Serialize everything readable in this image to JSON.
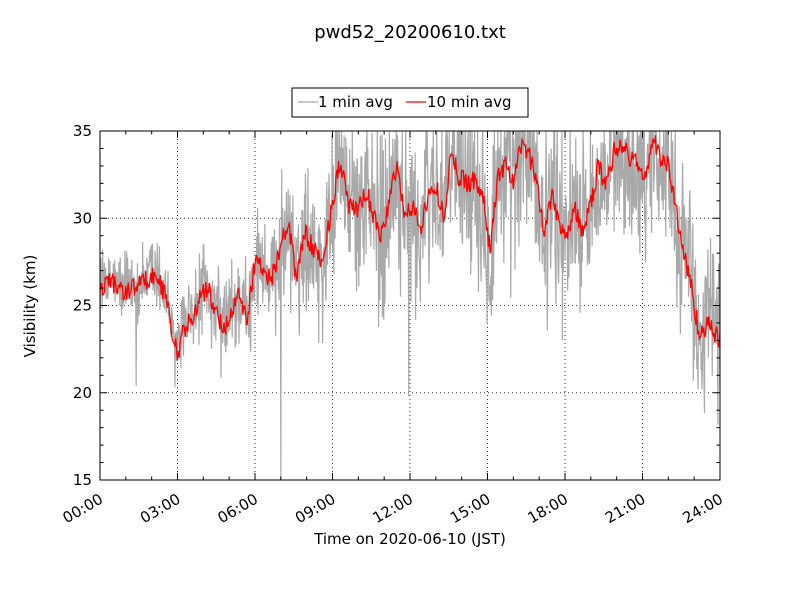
{
  "chart_data": {
    "type": "line",
    "title": "pwd52_20200610.txt",
    "xlabel": "Time on 2020-06-10 (JST)",
    "ylabel": "Visibility (km)",
    "x_ticks": [
      "00:00",
      "03:00",
      "06:00",
      "09:00",
      "12:00",
      "15:00",
      "18:00",
      "21:00",
      "24:00"
    ],
    "x_tick_hours": [
      0,
      3,
      6,
      9,
      12,
      15,
      18,
      21,
      24
    ],
    "y_ticks": [
      "15",
      "20",
      "25",
      "30",
      "35"
    ],
    "xlim_hours": [
      0,
      24
    ],
    "ylim": [
      15,
      35
    ],
    "grid": true,
    "legend_position": "top-center",
    "series": [
      {
        "name": "1 min avg",
        "color": "#a9a9a9",
        "noise_amplitude_km": [
          1.8,
          1.8,
          3.0,
          4.0,
          5.0,
          5.5,
          5.0,
          4.5,
          4.5
        ],
        "min_spikes": [
          {
            "hour": 7.0,
            "value": 15.0
          },
          {
            "hour": 11.95,
            "value": 19.8
          },
          {
            "hour": 1.4,
            "value": 20.4
          },
          {
            "hour": 2.9,
            "value": 20.3
          },
          {
            "hour": 23.3,
            "value": 20.2
          }
        ]
      },
      {
        "name": "10 min avg",
        "color": "#ff0000",
        "hours": [
          0,
          0.3,
          0.7,
          1.0,
          1.5,
          2.0,
          2.3,
          2.6,
          2.8,
          3.0,
          3.3,
          3.6,
          3.9,
          4.2,
          4.5,
          4.8,
          5.1,
          5.4,
          5.7,
          6.0,
          6.3,
          6.6,
          7.0,
          7.3,
          7.6,
          7.9,
          8.3,
          8.6,
          9.0,
          9.3,
          9.6,
          10.0,
          10.3,
          10.6,
          10.9,
          11.2,
          11.5,
          11.8,
          12.1,
          12.4,
          12.7,
          13.0,
          13.3,
          13.6,
          13.9,
          14.2,
          14.5,
          14.8,
          15.1,
          15.4,
          15.7,
          16.0,
          16.3,
          16.6,
          16.9,
          17.2,
          17.5,
          17.8,
          18.1,
          18.4,
          18.7,
          19.0,
          19.3,
          19.6,
          19.9,
          20.2,
          20.5,
          20.8,
          21.1,
          21.4,
          21.7,
          22.0,
          22.3,
          22.6,
          22.9,
          23.2,
          23.5,
          23.8,
          24.0
        ],
        "values": [
          25.7,
          26.6,
          26.0,
          25.8,
          26.2,
          26.7,
          26.4,
          25.2,
          23.5,
          22.2,
          23.8,
          24.3,
          25.6,
          25.9,
          24.5,
          23.7,
          24.6,
          25.8,
          24.1,
          27.7,
          27.2,
          26.4,
          28.5,
          29.6,
          26.5,
          29.2,
          28.2,
          27.3,
          31.0,
          33.3,
          30.8,
          30.4,
          31.6,
          30.0,
          29.0,
          31.0,
          33.2,
          30.0,
          30.7,
          29.5,
          31.2,
          31.9,
          30.1,
          33.7,
          32.3,
          32.1,
          32.2,
          31.4,
          28.2,
          32.3,
          33.2,
          31.8,
          34.2,
          33.7,
          32.1,
          29.2,
          31.6,
          29.5,
          29.3,
          30.5,
          29.1,
          30.8,
          33.0,
          31.8,
          33.9,
          34.2,
          33.5,
          33.1,
          32.3,
          34.5,
          33.5,
          33.0,
          30.5,
          28.0,
          26.0,
          23.3,
          24.0,
          23.3,
          23.1
        ]
      }
    ]
  }
}
